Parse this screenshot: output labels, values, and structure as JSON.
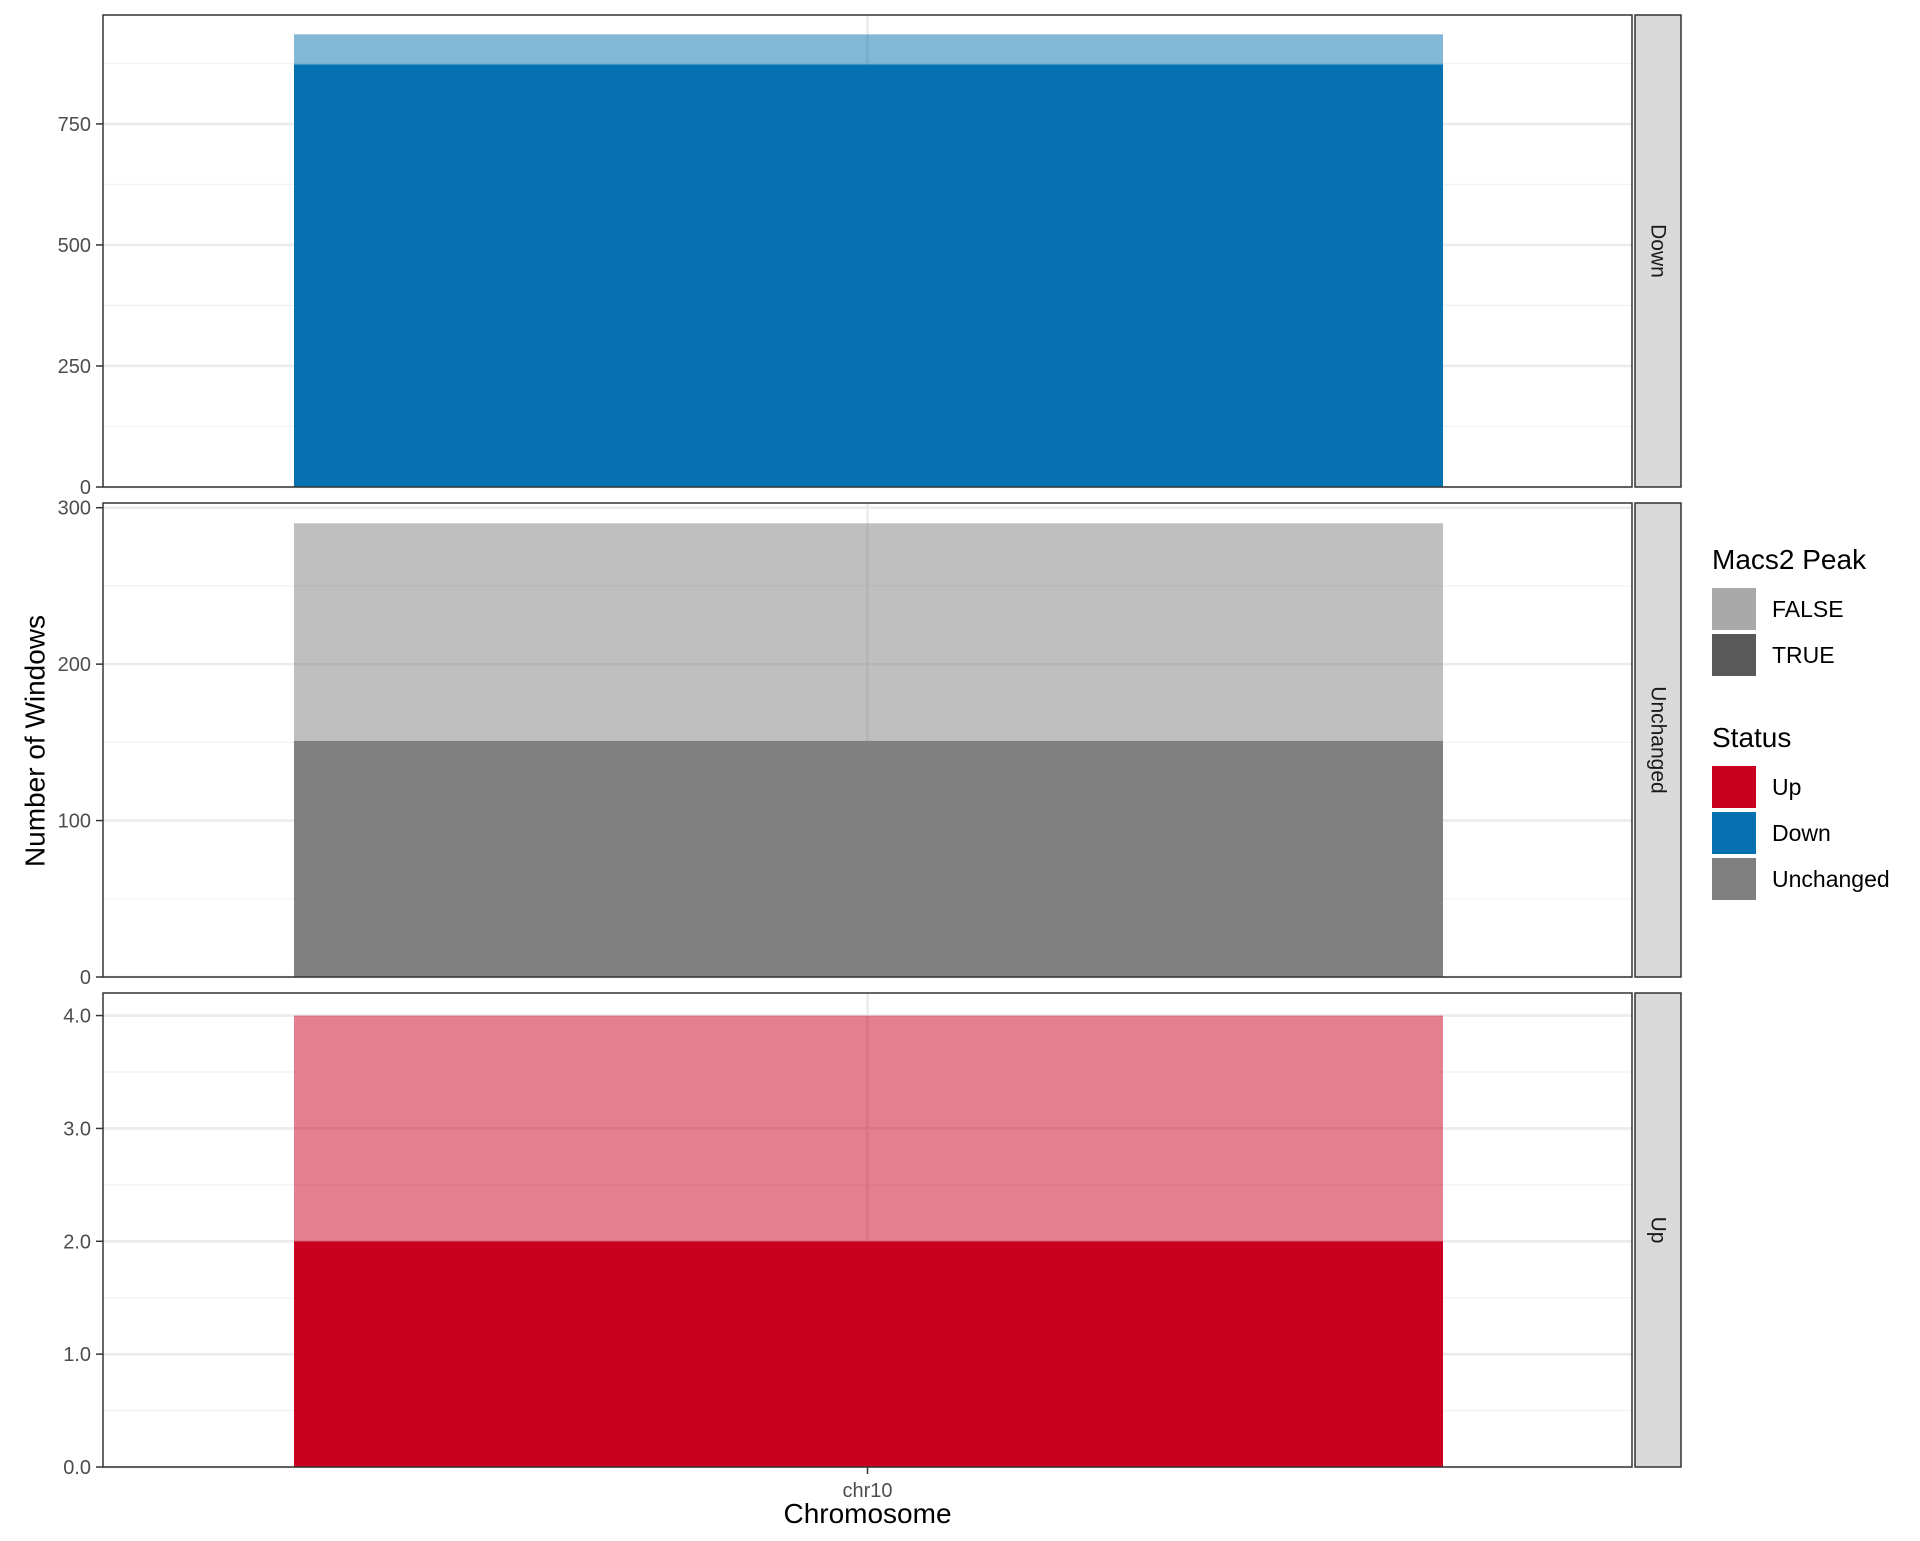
{
  "chart_data": {
    "type": "bar",
    "stacked": true,
    "xlabel": "Chromosome",
    "ylabel": "Number of Windows",
    "categories": [
      "chr10"
    ],
    "grid": true,
    "facets": [
      {
        "label": "Down",
        "status_color": "#0571b0",
        "ylim": [
          0,
          975
        ],
        "yticks": [
          0,
          250,
          500,
          750
        ],
        "ytick_labels": [
          "0",
          "250",
          "500",
          "750"
        ],
        "series": [
          {
            "name": "TRUE",
            "values": [
              873
            ]
          },
          {
            "name": "FALSE",
            "values": [
              62
            ]
          }
        ]
      },
      {
        "label": "Unchanged",
        "status_color": "#808080",
        "ylim": [
          0,
          303
        ],
        "yticks": [
          0,
          100,
          200,
          300
        ],
        "ytick_labels": [
          "0",
          "100",
          "200",
          "300"
        ],
        "series": [
          {
            "name": "TRUE",
            "values": [
              151
            ]
          },
          {
            "name": "FALSE",
            "values": [
              139
            ]
          }
        ]
      },
      {
        "label": "Up",
        "status_color": "#ca0020",
        "ylim": [
          0,
          4.2
        ],
        "yticks": [
          0,
          1,
          2,
          3,
          4
        ],
        "ytick_labels": [
          "0.0",
          "1.0",
          "2.0",
          "3.0",
          "4.0"
        ],
        "series": [
          {
            "name": "TRUE",
            "values": [
              2
            ]
          },
          {
            "name": "FALSE",
            "values": [
              2
            ]
          }
        ]
      }
    ],
    "legends": [
      {
        "title": "Macs2 Peak",
        "items": [
          {
            "label": "FALSE",
            "color": "#a9a9a9"
          },
          {
            "label": "TRUE",
            "color": "#595959"
          }
        ]
      },
      {
        "title": "Status",
        "items": [
          {
            "label": "Up",
            "color": "#ca0020"
          },
          {
            "label": "Down",
            "color": "#0571b0"
          },
          {
            "label": "Unchanged",
            "color": "#808080"
          }
        ]
      }
    ],
    "false_alpha": 0.5,
    "legend_position": "right"
  }
}
